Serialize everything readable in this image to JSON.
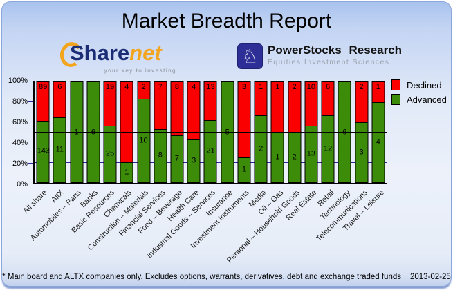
{
  "header": {
    "title": "Market Breadth Report",
    "sharenet_logo": {
      "brand_prefix": "Share",
      "brand_suffix": "net",
      "tagline": "your key to investing"
    },
    "powerstocks_logo": {
      "name": "PowerStocks  Research",
      "subtitle": "Equities Investment Sciences",
      "icon": "knight-chess-icon",
      "knight_glyph": "♘"
    }
  },
  "footer": {
    "note": "* Main board and ALTX companies only. Excludes options, warrants, derivatives, debt and exchange traded funds",
    "date": "2013-02-25"
  },
  "chart_data": {
    "type": "bar",
    "stacking": "percent",
    "title": "Market Breadth Report",
    "categories": [
      "All share",
      "AltX",
      "Automobiles – Parts",
      "Banks",
      "Basic Resources",
      "Chemicals",
      "Construction – Materials",
      "Financial Services",
      "Food – Beverage",
      "Health Care",
      "Industrial Goods – Services",
      "Insurance",
      "Investment Instruments",
      "Media",
      "Oil – Gas",
      "Personal – Household Goods",
      "Real Estate",
      "Retail",
      "Technology",
      "Telecommunications",
      "Travel – Leisure"
    ],
    "series": [
      {
        "name": "Declined",
        "color": "#fa0000",
        "values": [
          89,
          6,
          0,
          0,
          19,
          4,
          2,
          7,
          8,
          4,
          13,
          0,
          3,
          1,
          1,
          2,
          10,
          6,
          0,
          2,
          1
        ]
      },
      {
        "name": "Advanced",
        "color": "#3c8c0a",
        "values": [
          143,
          11,
          1,
          6,
          25,
          1,
          10,
          8,
          7,
          3,
          21,
          5,
          1,
          2,
          1,
          2,
          13,
          12,
          6,
          3,
          4
        ]
      }
    ],
    "y_ticks": [
      "0%",
      "20%",
      "40%",
      "60%",
      "80%",
      "100%"
    ],
    "ylim": [
      0,
      100
    ],
    "midline": 50,
    "legend_position": "top-right",
    "grid": {
      "major_levels": [
        20,
        80
      ],
      "major_color": "#28289a",
      "minor_levels": [
        40,
        60
      ],
      "minor_color": "#c2c2c2"
    }
  }
}
